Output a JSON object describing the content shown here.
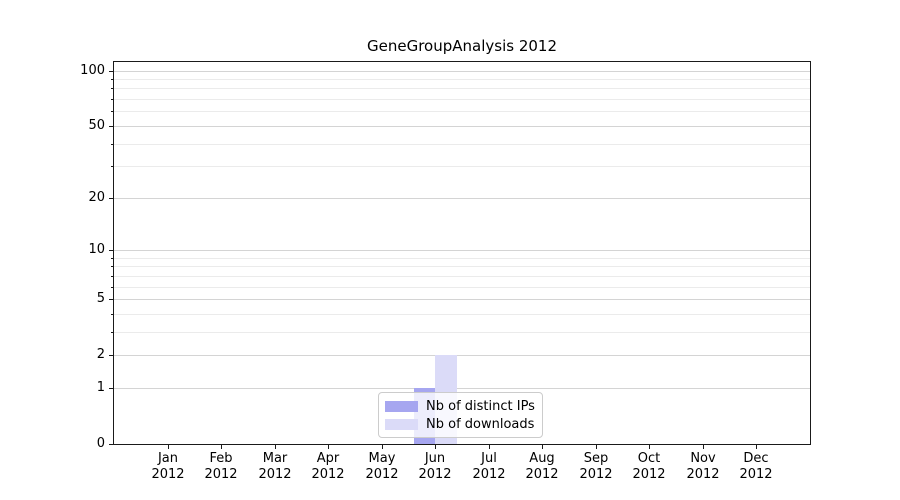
{
  "title": "GeneGroupAnalysis 2012",
  "chart_data": {
    "type": "bar",
    "title": "GeneGroupAnalysis 2012",
    "categories": [
      "Jan",
      "Feb",
      "Mar",
      "Apr",
      "May",
      "Jun",
      "Jul",
      "Aug",
      "Sep",
      "Oct",
      "Nov",
      "Dec"
    ],
    "x_tick_second_line": "2012",
    "series": [
      {
        "name": "Nb of distinct IPs",
        "color": "#a6a6f0",
        "values": [
          0,
          0,
          0,
          0,
          0,
          1,
          0,
          0,
          0,
          0,
          0,
          0
        ]
      },
      {
        "name": "Nb of downloads",
        "color": "#dbdbf8",
        "values": [
          0,
          0,
          0,
          0,
          0,
          2,
          0,
          0,
          0,
          0,
          0,
          0
        ]
      }
    ],
    "xlabel": "",
    "ylabel": "",
    "yscale": "symlog (log1p)",
    "y_major_ticks": [
      0,
      1,
      2,
      5,
      10,
      20,
      50,
      100
    ],
    "y_minor_ticks": [
      3,
      4,
      6,
      7,
      8,
      9,
      30,
      40,
      60,
      70,
      80,
      90
    ],
    "ylim": [
      0,
      112
    ],
    "grid": true,
    "legend_position": "lower center"
  },
  "legend": {
    "items": [
      {
        "label": "Nb of distinct IPs"
      },
      {
        "label": "Nb of downloads"
      }
    ]
  },
  "colors": {
    "bar_distinct_ips": "#a6a6f0",
    "bar_downloads": "#dbdbf8",
    "grid_major": "#d4d4d4",
    "grid_minor": "#ebebeb",
    "axis_frame": "#1a1a1a",
    "text": "#000000",
    "legend_border": "#cccccc",
    "background": "#ffffff"
  }
}
